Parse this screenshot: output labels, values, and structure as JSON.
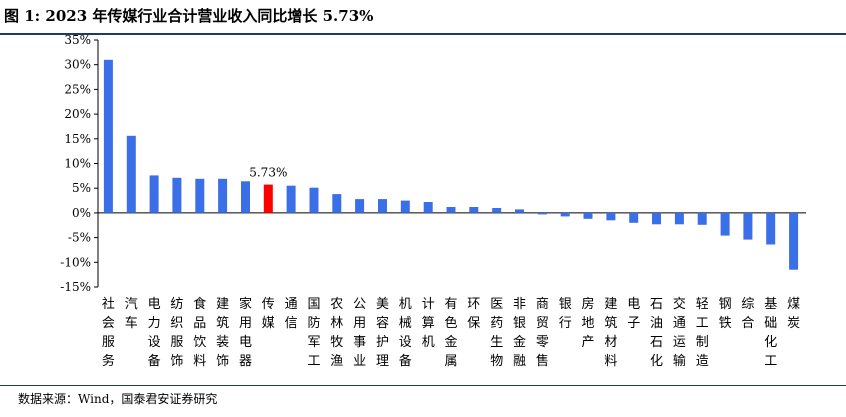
{
  "title": "图 1:  2023 年传媒行业合计营业收入同比增长 5.73%",
  "source": "数据来源：Wind，国泰君安证券研究",
  "highlight_label": "5.73%",
  "colors": {
    "bar": "#3a6fe8",
    "highlight": "#ff0000",
    "rule": "#1f3b63"
  },
  "chart_data": {
    "type": "bar",
    "title": "2023 年传媒行业合计营业收入同比增长 5.73%",
    "xlabel": "",
    "ylabel": "",
    "ylim": [
      -15,
      35
    ],
    "yticks": [
      -15,
      -10,
      -5,
      0,
      5,
      10,
      15,
      20,
      25,
      30,
      35
    ],
    "ytick_labels": [
      "-15%",
      "-10%",
      "-5%",
      "0%",
      "5%",
      "10%",
      "15%",
      "20%",
      "25%",
      "30%",
      "35%"
    ],
    "grid": false,
    "categories": [
      "社会服务",
      "汽车",
      "电力设备",
      "纺织服饰",
      "食品饮料",
      "建筑装饰",
      "家用电器",
      "传媒",
      "通信",
      "国防军工",
      "农林牧渔",
      "公用事业",
      "美容护理",
      "机械设备",
      "计算机",
      "有色金属",
      "环保",
      "医药生物",
      "非银金融",
      "商贸零售",
      "银行",
      "房地产",
      "建筑材料",
      "电子",
      "石油石化",
      "交通运输",
      "轻工制造",
      "钢铁",
      "综合",
      "基础化工",
      "煤炭"
    ],
    "values": [
      31.0,
      15.6,
      7.6,
      7.1,
      6.9,
      6.9,
      6.4,
      5.73,
      5.5,
      5.1,
      3.8,
      2.8,
      2.8,
      2.5,
      2.2,
      1.2,
      1.2,
      1.0,
      0.7,
      -0.3,
      -0.7,
      -1.2,
      -1.5,
      -2.0,
      -2.3,
      -2.3,
      -2.4,
      -4.6,
      -5.4,
      -6.4,
      -11.5
    ],
    "highlight_category": "传媒",
    "annotations": [
      "5.73%"
    ]
  }
}
